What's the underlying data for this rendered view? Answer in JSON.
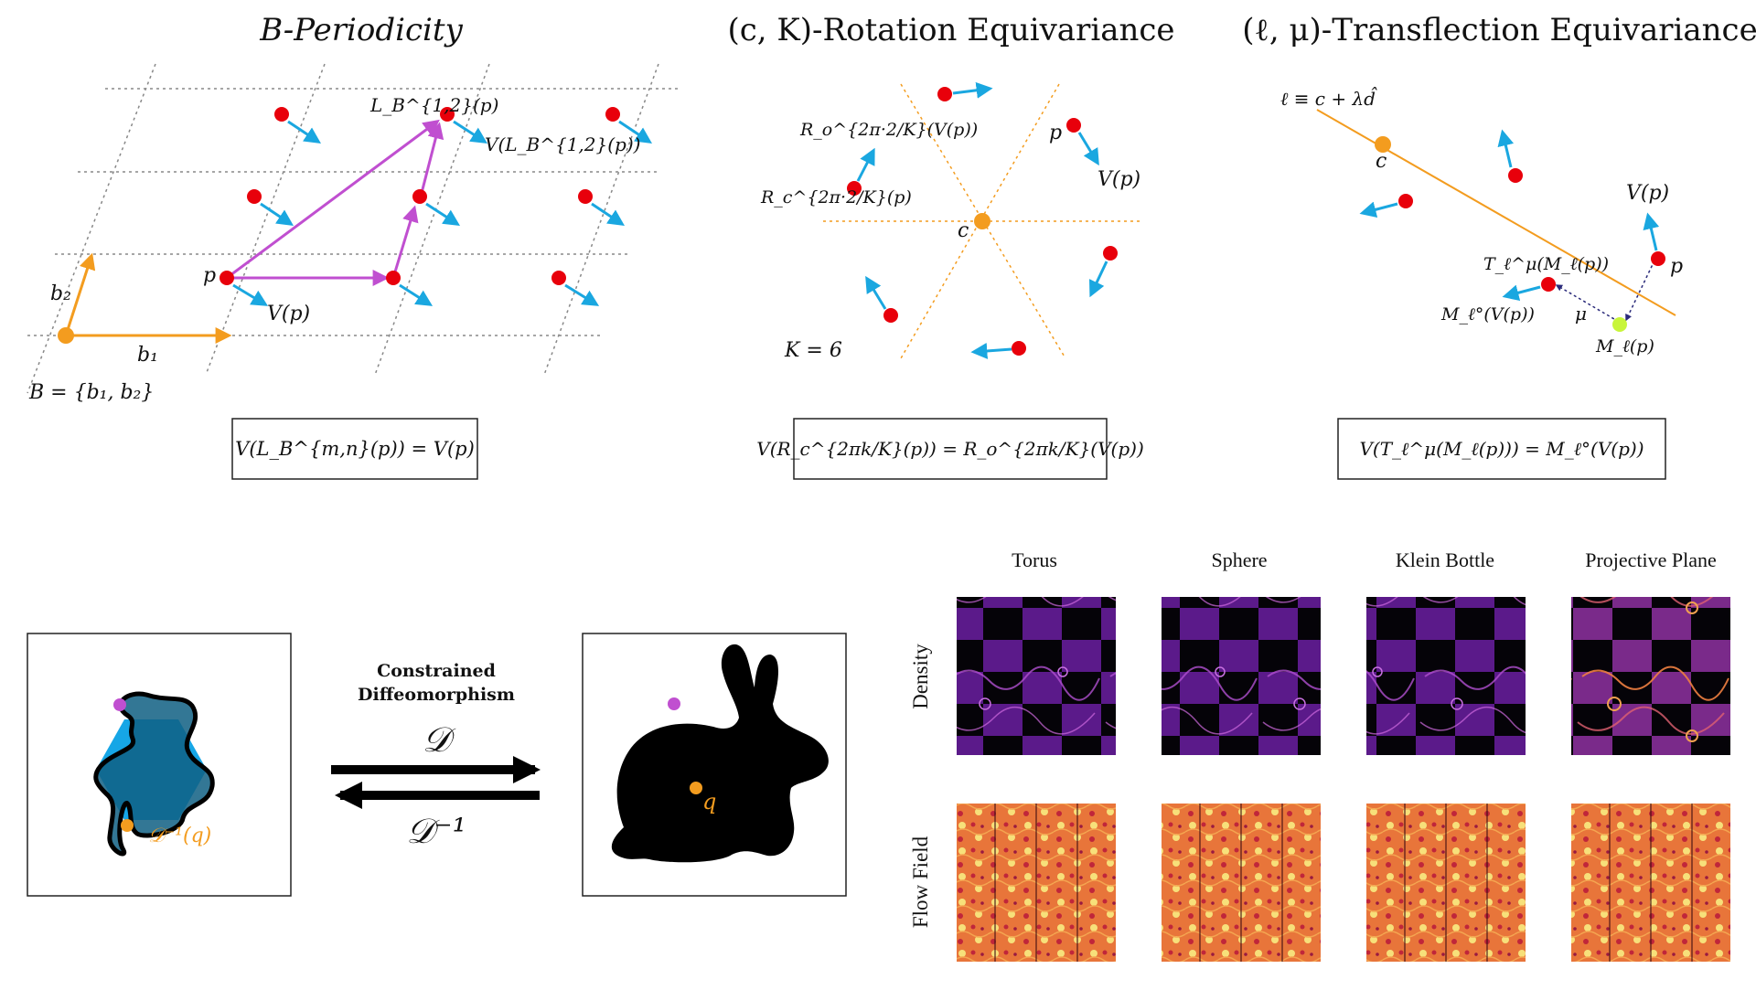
{
  "colors": {
    "red_point": "#e8000b",
    "blue_arrow": "#1aa7e0",
    "orange": "#f39c1f",
    "magenta": "#c04fd0",
    "lime": "#c8f53a",
    "grid": "#888888",
    "hexagon": "#16a6e6",
    "blob": "#0f5f82"
  },
  "panels": {
    "periodicity": {
      "title": "B-Periodicity",
      "label_L": "L_B^{1,2}(p)",
      "label_VL": "V(L_B^{1,2}(p))",
      "label_p": "p",
      "label_Vp": "V(p)",
      "label_b1": "b₁",
      "label_b2": "b₂",
      "label_B": "B = {b₁, b₂}",
      "equation": "V(L_B^{m,n}(p)) = V(p)"
    },
    "rotation": {
      "title": "(c, K)-Rotation Equivariance",
      "label_Ro": "R_o^{2π·2/K}(V(p))",
      "label_Rc": "R_c^{2π·2/K}(p)",
      "label_p": "p",
      "label_Vp": "V(p)",
      "label_c": "c",
      "label_K": "K = 6",
      "equation": "V(R_c^{2πk/K}(p)) = R_o^{2πk/K}(V(p))"
    },
    "transflection": {
      "title": "(ℓ, μ)-Transflection Equivariance",
      "label_line": "ℓ ≡ c + λd̂",
      "label_c": "c",
      "label_Vp": "V(p)",
      "label_p": "p",
      "label_T": "T_ℓ^μ(M_ℓ(p))",
      "label_Mo": "M_ℓ°(V(p))",
      "label_mu": "μ",
      "label_Ml": "M_ℓ(p)",
      "equation": "V(T_ℓ^μ(M_ℓ(p))) = M_ℓ°(V(p))"
    },
    "diffeo": {
      "caption_line1": "Constrained",
      "caption_line2": "Diffeomorphism",
      "forward": "𝒟",
      "inverse": "𝒟⁻¹",
      "label_inv_q": "𝒟⁻¹(q)",
      "label_q": "q"
    },
    "grid": {
      "columns": [
        "Torus",
        "Sphere",
        "Klein Bottle",
        "Projective Plane"
      ],
      "rows": [
        "Density",
        "Flow Field"
      ]
    }
  }
}
